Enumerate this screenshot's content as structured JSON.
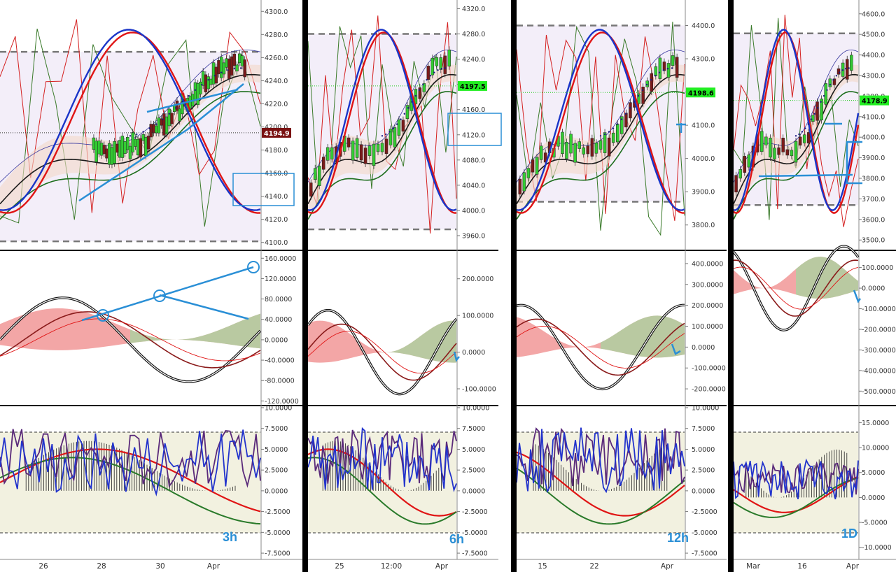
{
  "colors": {
    "price_panel_bg": "#f3eef9",
    "osc_panel_bg": "#f2f1e0",
    "bull_candle": "#33cc33",
    "bear_candle": "#7a1a1a",
    "blue_line": "#1a35c8",
    "red_line": "#e01515",
    "annotation": "#2a8fd6",
    "current_price_green": "#22ee22",
    "current_price_red": "#7a1212"
  },
  "panels": [
    {
      "timeframe": "3h",
      "current_price": "4194.9",
      "current_price_color": "red",
      "x_labels": [
        "26",
        "28",
        "30",
        "Apr"
      ],
      "price_axis": {
        "labels": [
          "4300.0",
          "4280.0",
          "4260.0",
          "4240.0",
          "4220.0",
          "4200.0",
          "4180.0",
          "4160.0",
          "4140.0",
          "4120.0",
          "4100.0"
        ],
        "range": [
          4095,
          4305
        ]
      },
      "macd_axis": {
        "labels": [
          "160.0000",
          "120.0000",
          "80.0000",
          "40.0000",
          "0.0000",
          "-40.0000",
          "-80.0000",
          "-120.0000"
        ],
        "range": [
          -125,
          170
        ]
      },
      "stoch_axis": {
        "labels": [
          "10.0000",
          "7.5000",
          "5.0000",
          "2.5000",
          "0.0000",
          "-2.5000",
          "-5.0000",
          "-7.5000"
        ],
        "range": [
          -8,
          10
        ]
      },
      "price_lines": {
        "dash_high": 4265,
        "dash_low": 4101
      }
    },
    {
      "timeframe": "6h",
      "current_price": "4197.5",
      "current_price_color": "green",
      "x_labels": [
        "25",
        "12:00",
        "Apr"
      ],
      "price_axis": {
        "labels": [
          "4320.0",
          "4280.0",
          "4240.0",
          "4200.0",
          "4160.0",
          "4120.0",
          "4080.0",
          "4040.0",
          "4000.0",
          "3960.0"
        ],
        "range": [
          3940,
          4325
        ]
      },
      "macd_axis": {
        "labels": [
          "200.0000",
          "100.0000",
          "0.0000",
          "-100.0000"
        ],
        "range": [
          -140,
          270
        ]
      },
      "stoch_axis": {
        "labels": [
          "10.0000",
          "7.5000",
          "5.0000",
          "2.5000",
          "0.0000",
          "-2.5000",
          "-5.0000",
          "-7.5000"
        ],
        "range": [
          -8,
          10
        ]
      },
      "price_lines": {
        "dash_high": 4280,
        "dash_low": 3970
      }
    },
    {
      "timeframe": "12h",
      "current_price": "4198.6",
      "current_price_color": "green",
      "x_labels": [
        "15",
        "22",
        "Apr"
      ],
      "price_axis": {
        "labels": [
          "4400.0",
          "4300.0",
          "4200.0",
          "4100.0",
          "4000.0",
          "3900.0",
          "3800.0"
        ],
        "range": [
          3730,
          4460
        ]
      },
      "macd_axis": {
        "labels": [
          "400.0000",
          "300.0000",
          "200.0000",
          "100.0000",
          "0.0000",
          "-100.0000",
          "-200.0000"
        ],
        "range": [
          -270,
          450
        ]
      },
      "stoch_axis": {
        "labels": [
          "10.0000",
          "7.5000",
          "5.0000",
          "2.5000",
          "0.0000",
          "-2.5000",
          "-5.0000",
          "-7.5000"
        ],
        "range": [
          -8,
          10
        ]
      },
      "price_lines": {
        "dash_high": 4400,
        "dash_low": 3870
      }
    },
    {
      "timeframe": "1D",
      "current_price": "4178.9",
      "current_price_color": "green",
      "x_labels": [
        "Mar",
        "16",
        "Apr"
      ],
      "price_axis": {
        "labels": [
          "4600.0",
          "4500.0",
          "4400.0",
          "4300.0",
          "4200.0",
          "4100.0",
          "4000.0",
          "3900.0",
          "3800.0",
          "3700.0",
          "3600.0",
          "3500.0"
        ],
        "range": [
          3460,
          4640
        ]
      },
      "macd_axis": {
        "labels": [
          "100.0000",
          "0.0000",
          "-100.0000",
          "-200.0000",
          "-300.0000",
          "-400.0000",
          "-500.0000"
        ],
        "range": [
          -560,
          170
        ]
      },
      "stoch_axis": {
        "labels": [
          "15.0000",
          "10.0000",
          "5.0000",
          "0.0000",
          "-5.0000",
          "-10.0000"
        ],
        "range": [
          -12,
          18
        ]
      },
      "price_lines": {
        "dash_high": 4505,
        "dash_low": 3670
      }
    }
  ]
}
